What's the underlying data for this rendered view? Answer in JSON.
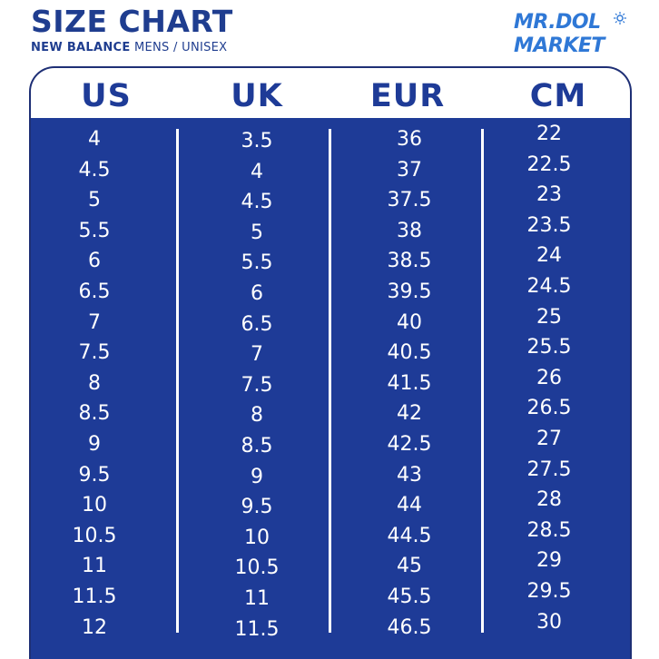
{
  "header": {
    "title": "SIZE CHART",
    "subtitle_brand": "NEW BALANCE",
    "subtitle_rest": " MENS / UNISEX"
  },
  "logo": {
    "line1": "MR.DOL",
    "line2": "MARKET",
    "icon": "sun-icon"
  },
  "colors": {
    "navy": "#1e3b97",
    "title": "#1f3d8f",
    "logo": "#2f78d6",
    "text": "#ffffff"
  },
  "table": {
    "columns": [
      "US",
      "UK",
      "EUR",
      "CM"
    ],
    "rows": [
      [
        "4",
        "3.5",
        "36",
        "22"
      ],
      [
        "4.5",
        "4",
        "37",
        "22.5"
      ],
      [
        "5",
        "4.5",
        "37.5",
        "23"
      ],
      [
        "5.5",
        "5",
        "38",
        "23.5"
      ],
      [
        "6",
        "5.5",
        "38.5",
        "24"
      ],
      [
        "6.5",
        "6",
        "39.5",
        "24.5"
      ],
      [
        "7",
        "6.5",
        "40",
        "25"
      ],
      [
        "7.5",
        "7",
        "40.5",
        "25.5"
      ],
      [
        "8",
        "7.5",
        "41.5",
        "26"
      ],
      [
        "8.5",
        "8",
        "42",
        "26.5"
      ],
      [
        "9",
        "8.5",
        "42.5",
        "27"
      ],
      [
        "9.5",
        "9",
        "43",
        "27.5"
      ],
      [
        "10",
        "9.5",
        "44",
        "28"
      ],
      [
        "10.5",
        "10",
        "44.5",
        "28.5"
      ],
      [
        "11",
        "10.5",
        "45",
        "29"
      ],
      [
        "11.5",
        "11",
        "45.5",
        "29.5"
      ],
      [
        "12",
        "11.5",
        "46.5",
        "30"
      ]
    ]
  }
}
